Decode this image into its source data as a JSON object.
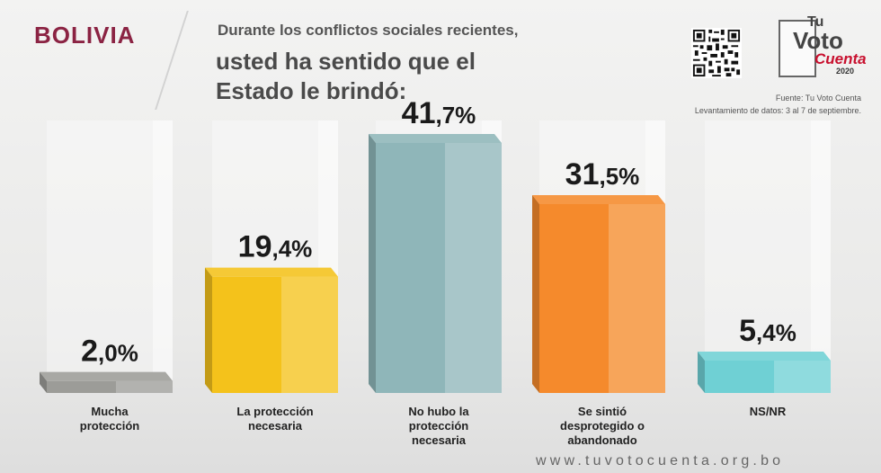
{
  "header": {
    "country": "BOLIVIA",
    "question_line1": "Durante los conflictos sociales recientes,",
    "question_line2": "usted ha sentido que el",
    "question_line3": "Estado le brindó:"
  },
  "logo": {
    "tu": "Tu",
    "voto": "Voto",
    "cuenta": "Cuenta",
    "year": "2020"
  },
  "source": {
    "line1": "Fuente: Tu Voto Cuenta",
    "line2": "Levantamiento de datos: 3 al 7 de septiembre."
  },
  "footer": {
    "url": "www.tuvotocuenta.org.bo"
  },
  "chart_data": {
    "type": "bar",
    "categories": [
      "Mucha\nprotección",
      "La protección\nnecesaria",
      "No hubo la\nprotección\nnecesaria",
      "Se sintió\ndesprotegido o\nabandonado",
      "NS/NR"
    ],
    "values": [
      2.0,
      19.4,
      41.7,
      31.5,
      5.4
    ],
    "labels": [
      "2,0%",
      "19,4%",
      "41,7%",
      "31,5%",
      "5,4%"
    ],
    "colors": [
      "#9c9c98",
      "#f4c21b",
      "#8fb6b9",
      "#f58a2c",
      "#6fd0d4"
    ],
    "ylim": [
      0,
      45
    ]
  }
}
